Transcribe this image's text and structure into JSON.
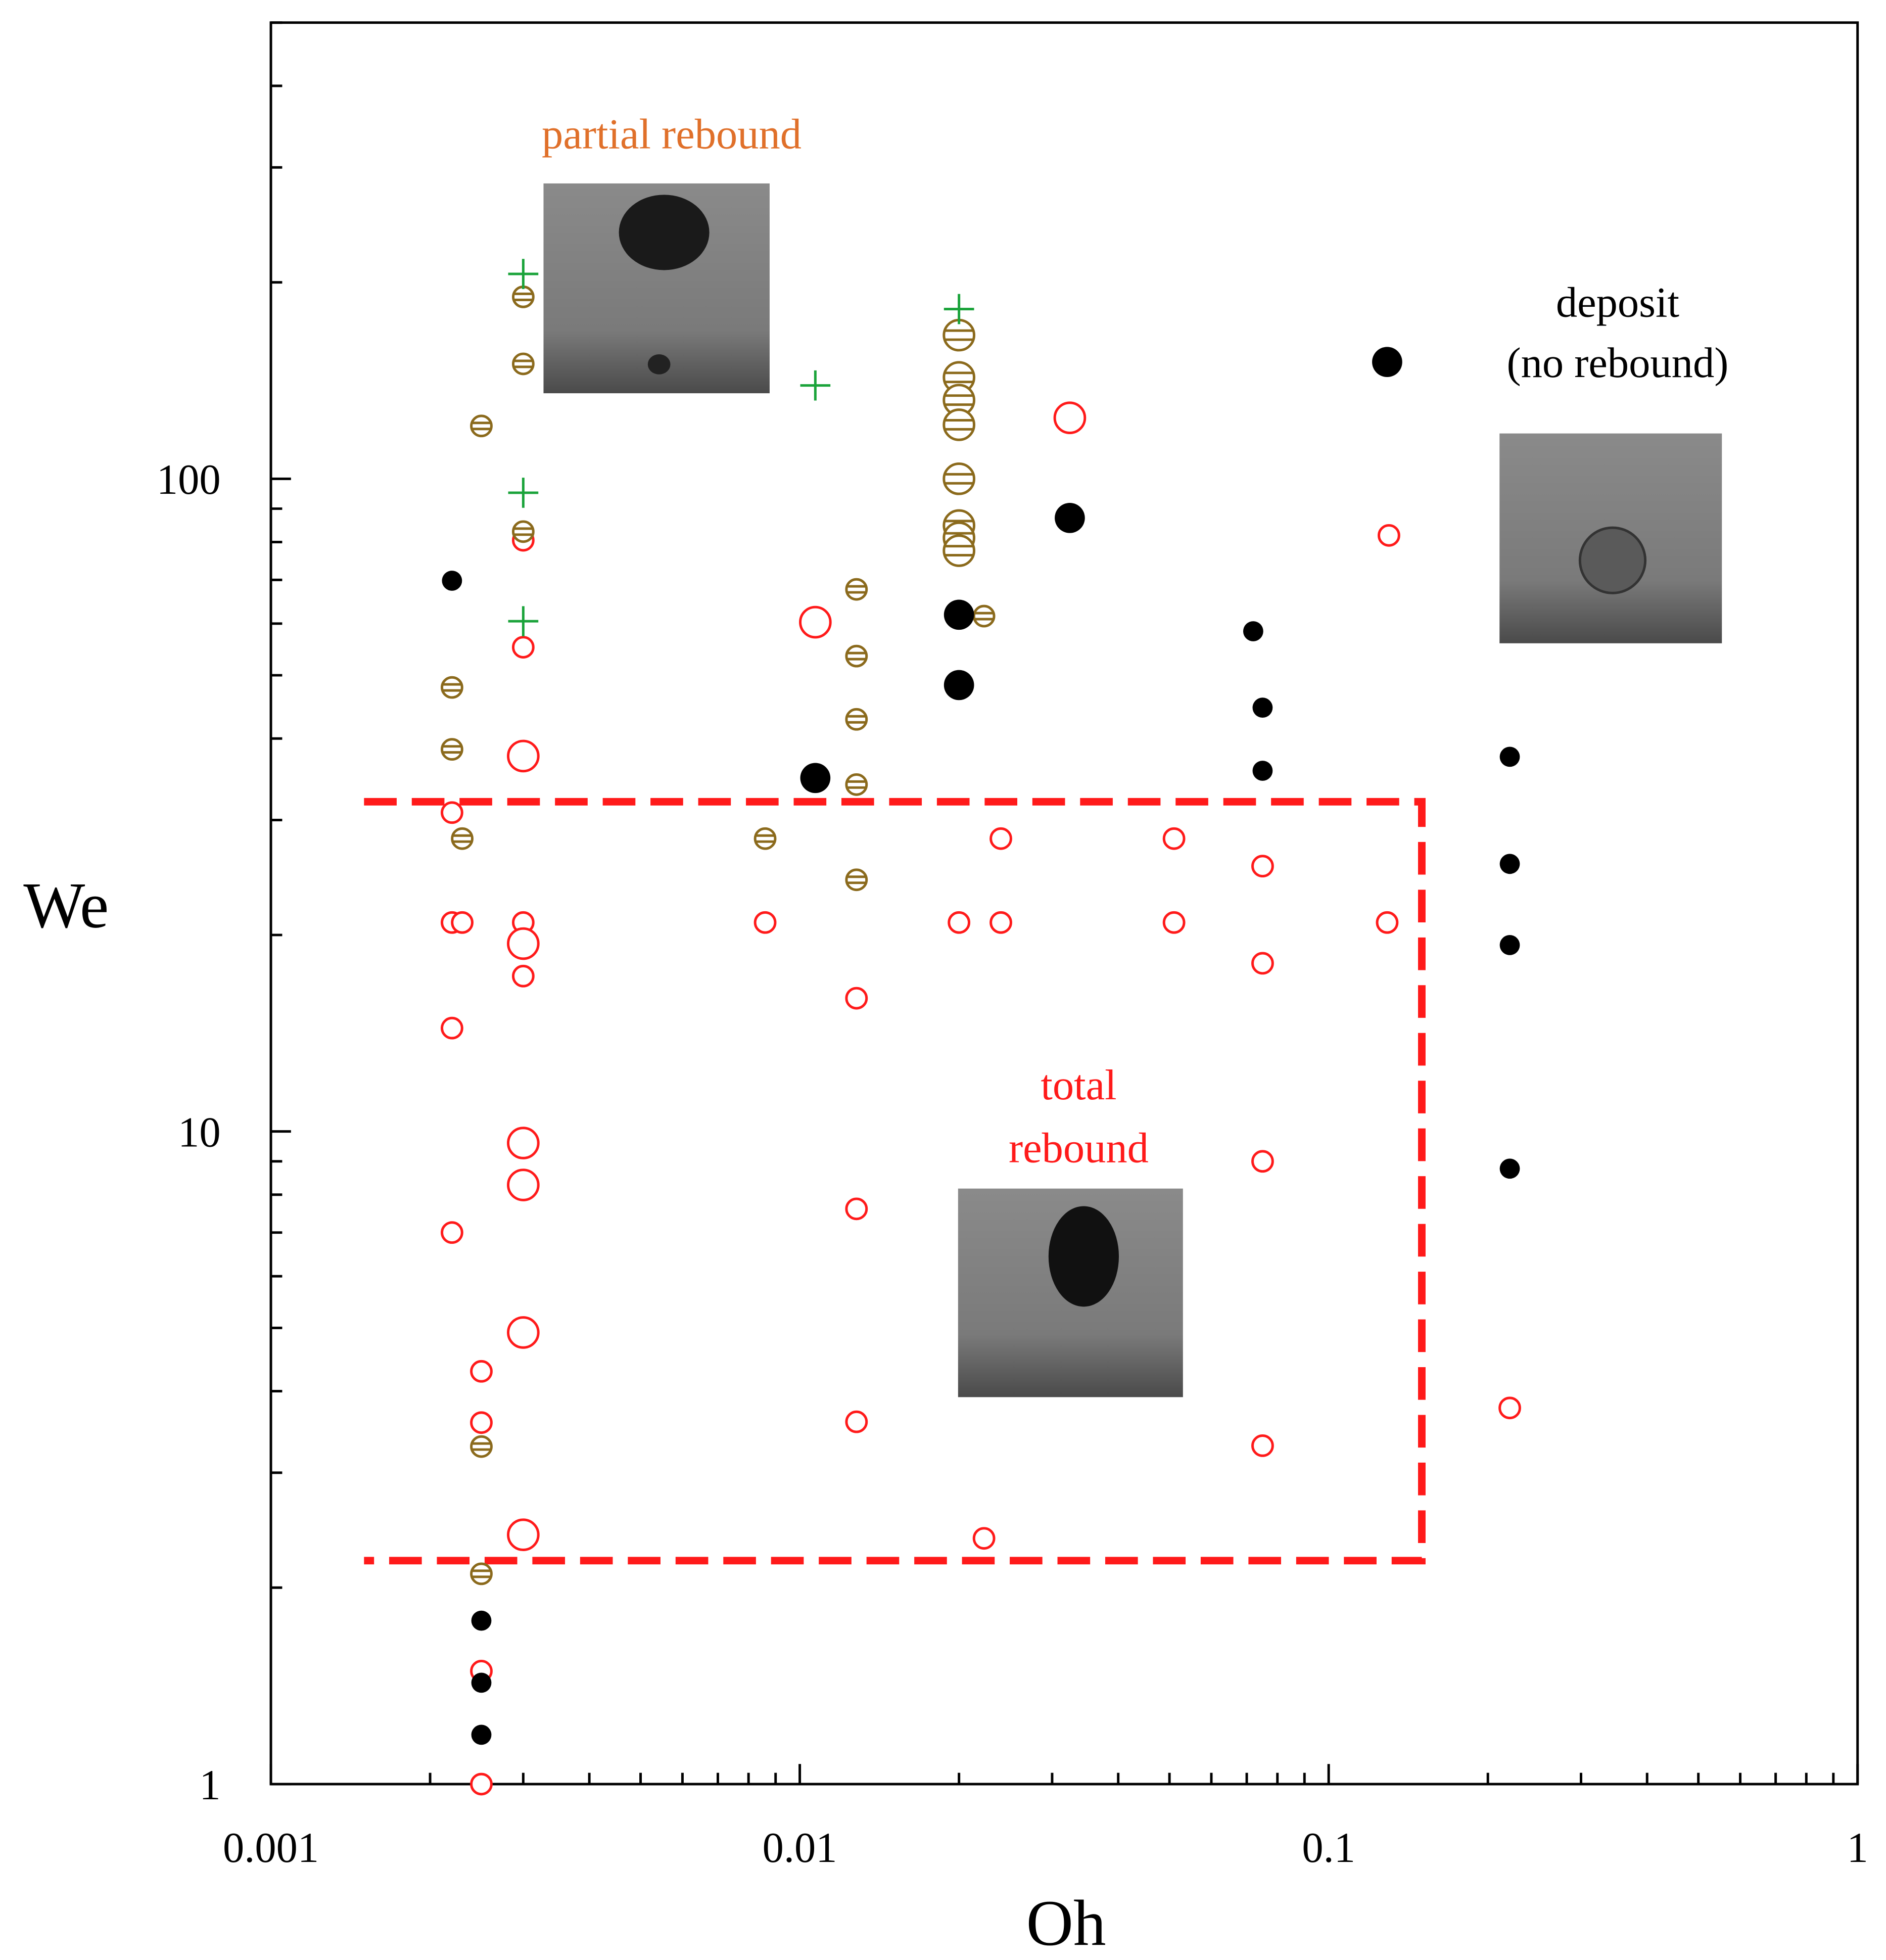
{
  "chart_data": {
    "type": "scatter",
    "xlabel": "Oh",
    "ylabel": "We",
    "xscale": "log",
    "yscale": "log",
    "xlim": [
      0.001,
      1
    ],
    "ylim": [
      1,
      500
    ],
    "xticks": [
      0.001,
      0.01,
      0.1,
      1
    ],
    "yticks": [
      1,
      10,
      100
    ],
    "xminorticks": [
      0.002,
      0.003,
      0.004,
      0.005,
      0.006,
      0.007,
      0.008,
      0.009,
      0.02,
      0.03,
      0.04,
      0.05,
      0.06,
      0.07,
      0.08,
      0.09,
      0.2,
      0.3,
      0.4,
      0.5,
      0.6,
      0.7,
      0.8,
      0.9
    ],
    "yminorticks": [
      2,
      3,
      4,
      5,
      6,
      7,
      8,
      9,
      20,
      30,
      40,
      50,
      60,
      70,
      80,
      90,
      200,
      300,
      400,
      500
    ],
    "annotations": [
      "partial rebound",
      "total",
      "rebound",
      "deposit",
      "(no rebound)"
    ],
    "annotation_colors": [
      "#e0702a",
      "#ff1a1a",
      "#ff1a1a",
      "#000000",
      "#000000"
    ],
    "regions": [
      {
        "x0": 0.0015,
        "x1": 0.15,
        "y0": 2.2,
        "y1": 32,
        "color": "#ff1a1a"
      }
    ],
    "series": [
      {
        "color": "#ff1a1a",
        "marker": "open-circle",
        "marker_size": "small",
        "x": [
          0.0022,
          0.0022,
          0.0023,
          0.0022,
          0.0022,
          0.0025,
          0.0025,
          0.0025,
          0.0025,
          0.003,
          0.003,
          0.003,
          0.003,
          0.0086,
          0.0128,
          0.0128,
          0.0128,
          0.02,
          0.024,
          0.024,
          0.0223,
          0.051,
          0.051,
          0.075,
          0.075,
          0.075,
          0.075,
          0.129,
          0.13,
          0.22
        ],
        "values": [
          30.8,
          20.9,
          20.9,
          14.4,
          7.0,
          4.29,
          3.58,
          1.49,
          1,
          80.5,
          55.2,
          20.9,
          17.3,
          20.9,
          16.0,
          7.61,
          3.59,
          20.9,
          28.1,
          20.9,
          2.38,
          28.1,
          20.9,
          25.5,
          18.1,
          9.0,
          3.3,
          20.9,
          81.9,
          3.77
        ]
      },
      {
        "color": "#ff1a1a",
        "marker": "open-circle",
        "marker_size": "large",
        "x": [
          0.003,
          0.003,
          0.003,
          0.003,
          0.003,
          0.003,
          0.0107,
          0.0324
        ],
        "values": [
          37.6,
          19.4,
          9.6,
          8.28,
          4.92,
          2.41,
          60.3,
          124
        ]
      },
      {
        "color": "#8b6a1c",
        "marker": "lined-circle",
        "marker_size": "small",
        "x": [
          0.0025,
          0.003,
          0.003,
          0.003,
          0.0022,
          0.0022,
          0.0023,
          0.0025,
          0.0025,
          0.0086,
          0.0128,
          0.0128,
          0.0128,
          0.0128,
          0.0128,
          0.0223
        ],
        "values": [
          120.5,
          190,
          150,
          83,
          47.9,
          38.5,
          28.1,
          3.29,
          2.1,
          28.1,
          67.7,
          53.5,
          42.8,
          34.0,
          24.3,
          61.6
        ]
      },
      {
        "color": "#8b6a1c",
        "marker": "lined-circle",
        "marker_size": "large",
        "x": [
          0.02,
          0.02,
          0.02,
          0.02,
          0.02,
          0.02,
          0.02,
          0.02
        ],
        "values": [
          166,
          143,
          132,
          121,
          100,
          84.8,
          81.2,
          77.6
        ]
      },
      {
        "color": "#000000",
        "marker": "filled-circle",
        "marker_size": "small",
        "x": [
          0.0022,
          0.0025,
          0.0025,
          0.0025,
          0.072,
          0.075,
          0.075,
          0.22,
          0.22,
          0.22,
          0.22
        ],
        "values": [
          69.8,
          1.78,
          1.43,
          1.19,
          58.4,
          44.6,
          35.7,
          37.5,
          25.7,
          19.3,
          8.77
        ]
      },
      {
        "color": "#000000",
        "marker": "filled-circle",
        "marker_size": "large",
        "x": [
          0.0107,
          0.02,
          0.02,
          0.0324,
          0.129
        ],
        "values": [
          34.8,
          61.9,
          48.3,
          87.1,
          151
        ]
      },
      {
        "color": "#1aa33a",
        "marker": "plus",
        "marker_size": "large",
        "x": [
          0.003,
          0.003,
          0.003,
          0.0107,
          0.02
        ],
        "values": [
          206,
          95.2,
          60.5,
          139,
          182
        ]
      }
    ]
  }
}
